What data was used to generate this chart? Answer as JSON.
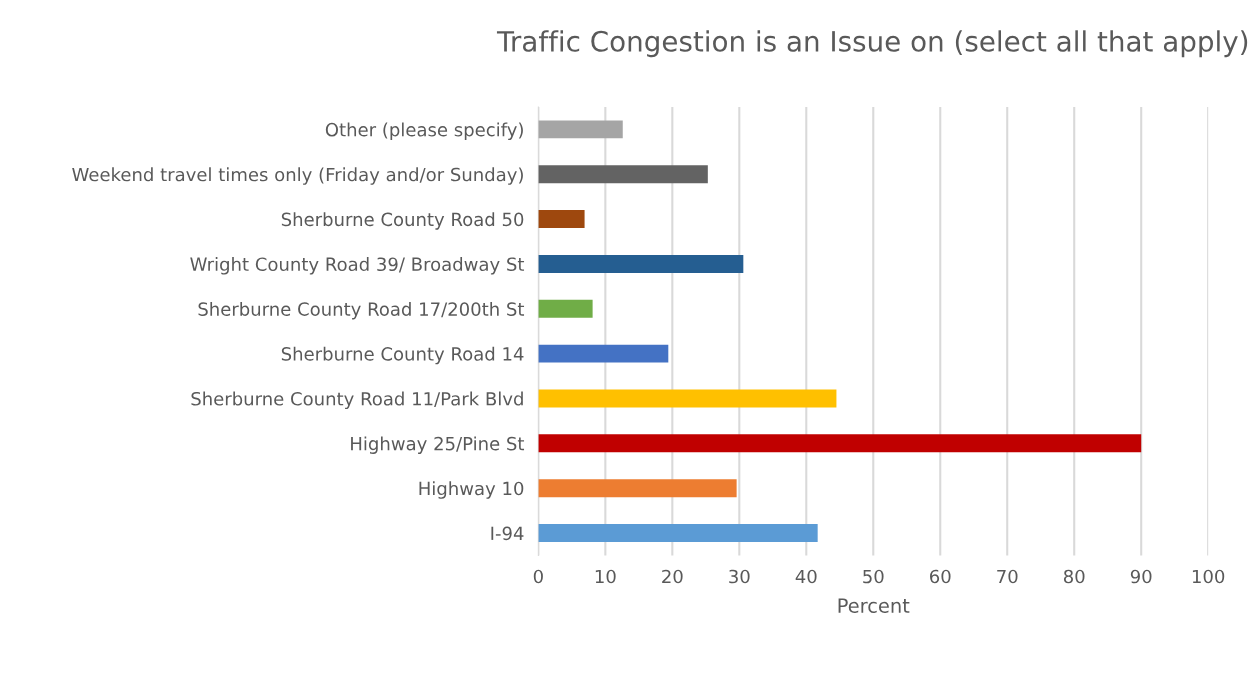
{
  "chart_data": {
    "type": "bar",
    "orientation": "horizontal",
    "title": "Traffic Congestion is an Issue on (select all that apply)",
    "xlabel": "Percent",
    "categories": [
      "Other (please specify)",
      "Weekend travel times only (Friday and/or Sunday)",
      "Sherburne County Road 50",
      "Wright County Road 39/ Broadway St",
      "Sherburne County Road 17/200th St",
      "Sherburne County Road 14",
      "Sherburne County Road 11/Park Blvd",
      "Highway 25/Pine St",
      "Highway 10",
      "I-94"
    ],
    "values": [
      12.6,
      25.3,
      6.9,
      30.6,
      8.1,
      19.4,
      44.5,
      90,
      29.6,
      41.7
    ],
    "colors": [
      "#a5a5a5",
      "#636363",
      "#9e480e",
      "#255e91",
      "#70ad47",
      "#4472c4",
      "#ffc000",
      "#c00000",
      "#ed7d31",
      "#5b9bd5"
    ],
    "xlim": [
      0,
      100
    ],
    "xticks": [
      0,
      10,
      20,
      30,
      40,
      50,
      60,
      70,
      80,
      90,
      100
    ],
    "grid": "x",
    "legend": false
  }
}
